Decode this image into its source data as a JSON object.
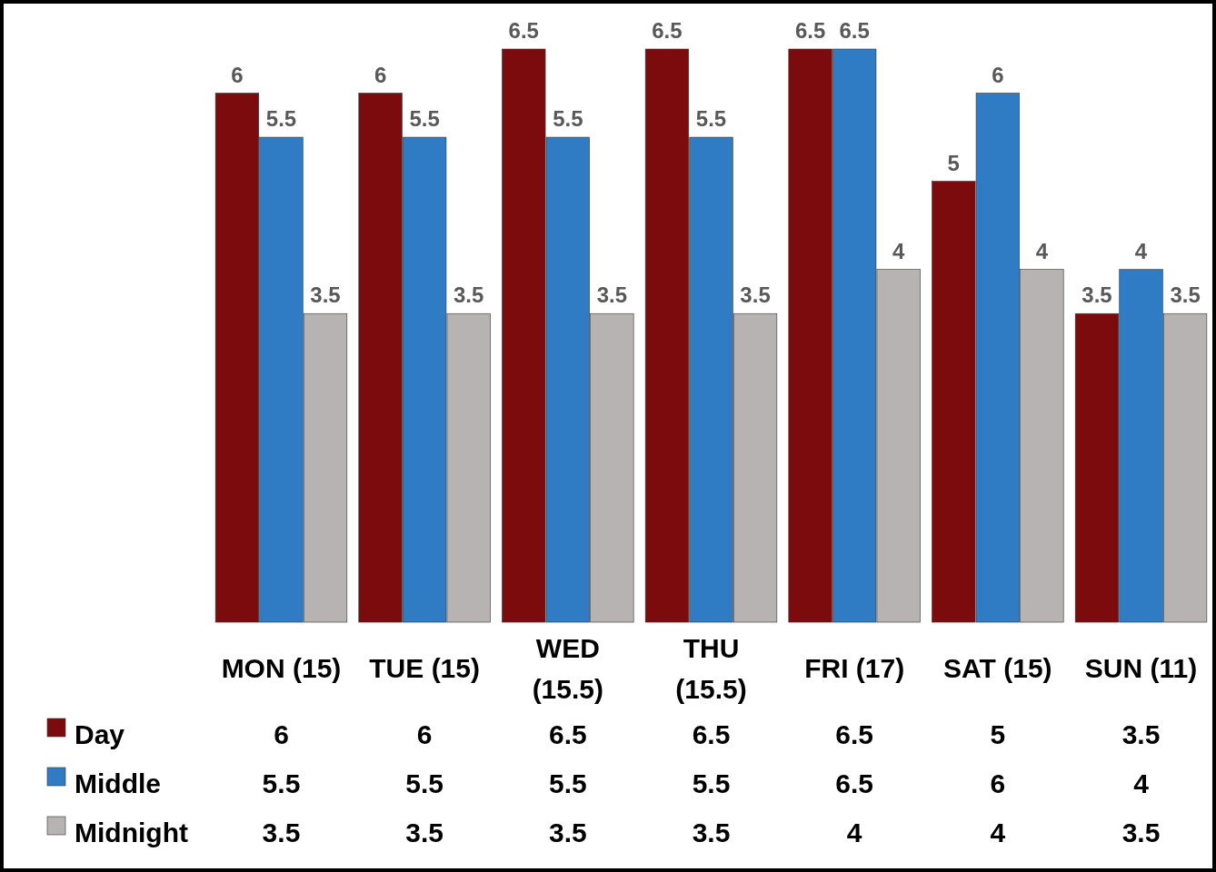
{
  "chart_data": {
    "type": "bar",
    "categories": [
      "MON (15)",
      "TUE (15)",
      "WED (15.5)",
      "THU (15.5)",
      "FRI (17)",
      "SAT (15)",
      "SUN (11)"
    ],
    "series": [
      {
        "name": "Day",
        "color": "#7b0b0d",
        "values": [
          6,
          6,
          6.5,
          6.5,
          6.5,
          5,
          3.5
        ]
      },
      {
        "name": "Middle",
        "color": "#2f7cc4",
        "values": [
          5.5,
          5.5,
          5.5,
          5.5,
          6.5,
          6,
          4
        ]
      },
      {
        "name": "Midnight",
        "color": "#b8b3b3",
        "values": [
          3.5,
          3.5,
          3.5,
          3.5,
          4,
          4,
          3.5
        ]
      }
    ],
    "annotations": [
      "6",
      "6",
      "6.5",
      "6.5",
      "6.5",
      "5",
      "3.5",
      "5.5",
      "5.5",
      "5.5",
      "5.5",
      "6.5",
      "6",
      "4",
      "3.5",
      "3.5",
      "3.5",
      "3.5",
      "4",
      "4",
      "3.5"
    ],
    "ylim": [
      0,
      6.5
    ],
    "tick_labels": "x",
    "data_labels": true,
    "legend": "bottom",
    "grid": false
  }
}
